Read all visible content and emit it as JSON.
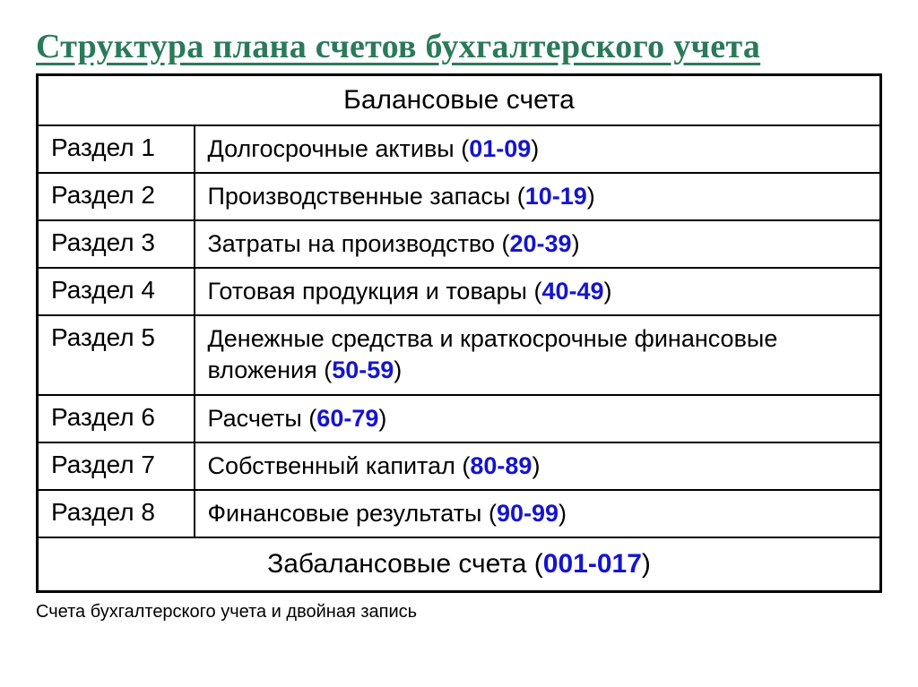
{
  "title": "Структура плана счетов бухгалтерского учета",
  "table": {
    "header": "Балансовые счета",
    "rows": [
      {
        "section": "Раздел 1",
        "desc": "Долгосрочные  активы ",
        "range": "01-09"
      },
      {
        "section": "Раздел 2",
        "desc": "Производственные запасы ",
        "range": "10-19"
      },
      {
        "section": "Раздел 3",
        "desc": "Затраты на производство ",
        "range": "20-39"
      },
      {
        "section": "Раздел 4",
        "desc": "Готовая продукция и товары ",
        "range": "40-49"
      },
      {
        "section": "Раздел 5",
        "desc": "Денежные средства и краткосрочные финансовые вложения ",
        "range": "50-59"
      },
      {
        "section": "Раздел 6",
        "desc": "Расчеты ",
        "range": "60-79"
      },
      {
        "section": "Раздел 7",
        "desc": "Собственный капитал ",
        "range": "80-89"
      },
      {
        "section": "Раздел 8",
        "desc": "Финансовые результаты ",
        "range": "90-99"
      }
    ],
    "footer_text": "Забалансовые счета ",
    "footer_range": "001-017"
  },
  "caption": "Счета бухгалтерского учета и двойная запись",
  "colors": {
    "title_color": "#2a7a5a",
    "range_color": "#1414d0",
    "text_color": "#000000",
    "border_color": "#000000",
    "background": "#ffffff"
  },
  "typography": {
    "title_fontsize": 38,
    "header_fontsize": 30,
    "section_fontsize": 28,
    "desc_fontsize": 27,
    "footer_fontsize": 30,
    "caption_fontsize": 20
  }
}
